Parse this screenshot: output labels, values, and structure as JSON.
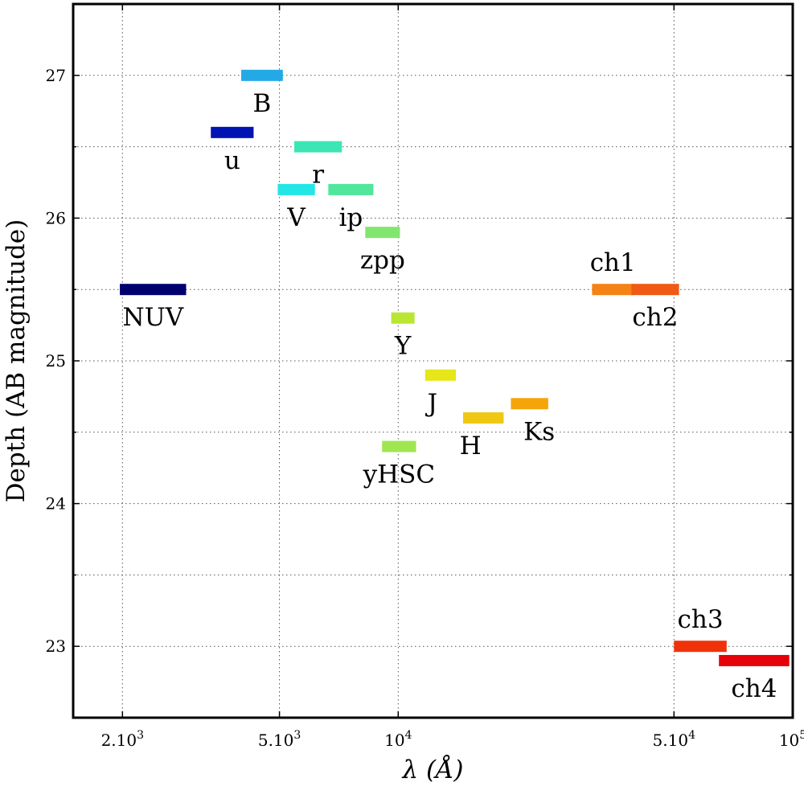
{
  "chart_data": {
    "type": "range-bar",
    "xlabel": "λ (Å)",
    "ylabel": "Depth (AB magnitude)",
    "x_scale": "log",
    "xlim": [
      1500,
      100000
    ],
    "ylim": [
      22.5,
      27.5
    ],
    "grid": true,
    "x_ticks": [
      {
        "value": 2000,
        "label": "2.10",
        "exp": "3"
      },
      {
        "value": 5000,
        "label": "5.10",
        "exp": "3"
      },
      {
        "value": 10000,
        "label": "10",
        "exp": "4"
      },
      {
        "value": 50000,
        "label": "5.10",
        "exp": "4"
      },
      {
        "value": 100000,
        "label": "10",
        "exp": "5"
      }
    ],
    "y_ticks": [
      23,
      24,
      25,
      26,
      27
    ],
    "y_minor_ticks": [
      22.5,
      23.5,
      24.5,
      25.5,
      26.5,
      27.5
    ],
    "bands": [
      {
        "name": "NUV",
        "x_min": 1970,
        "x_max": 2900,
        "depth": 25.5,
        "color": "#00006f"
      },
      {
        "name": "u",
        "x_min": 3350,
        "x_max": 4300,
        "depth": 26.6,
        "color": "#0014b4"
      },
      {
        "name": "B",
        "x_min": 4000,
        "x_max": 5100,
        "depth": 27.0,
        "color": "#23aae6"
      },
      {
        "name": "V",
        "x_min": 4950,
        "x_max": 6150,
        "depth": 26.2,
        "color": "#23e6e6"
      },
      {
        "name": "r",
        "x_min": 5450,
        "x_max": 7200,
        "depth": 26.5,
        "color": "#3ce6b4"
      },
      {
        "name": "ip",
        "x_min": 6650,
        "x_max": 8650,
        "depth": 26.2,
        "color": "#50e69b"
      },
      {
        "name": "zpp",
        "x_min": 8250,
        "x_max": 10100,
        "depth": 25.9,
        "color": "#82e66e"
      },
      {
        "name": "Y",
        "x_min": 9600,
        "x_max": 11000,
        "depth": 25.3,
        "color": "#b9e632"
      },
      {
        "name": "yHSC",
        "x_min": 9100,
        "x_max": 11100,
        "depth": 24.4,
        "color": "#a0e650"
      },
      {
        "name": "J",
        "x_min": 11700,
        "x_max": 14000,
        "depth": 24.9,
        "color": "#e6e619"
      },
      {
        "name": "H",
        "x_min": 14600,
        "x_max": 18500,
        "depth": 24.6,
        "color": "#f0c814"
      },
      {
        "name": "Ks",
        "x_min": 19300,
        "x_max": 24000,
        "depth": 24.7,
        "color": "#f5a50a"
      },
      {
        "name": "ch1",
        "x_min": 31000,
        "x_max": 39500,
        "depth": 25.5,
        "color": "#f58214"
      },
      {
        "name": "ch2",
        "x_min": 39000,
        "x_max": 51500,
        "depth": 25.5,
        "color": "#f05a14"
      },
      {
        "name": "ch3",
        "x_min": 50000,
        "x_max": 68000,
        "depth": 23.0,
        "color": "#f0320a"
      },
      {
        "name": "ch4",
        "x_min": 65000,
        "x_max": 98000,
        "depth": 22.9,
        "color": "#e6000a"
      }
    ]
  }
}
